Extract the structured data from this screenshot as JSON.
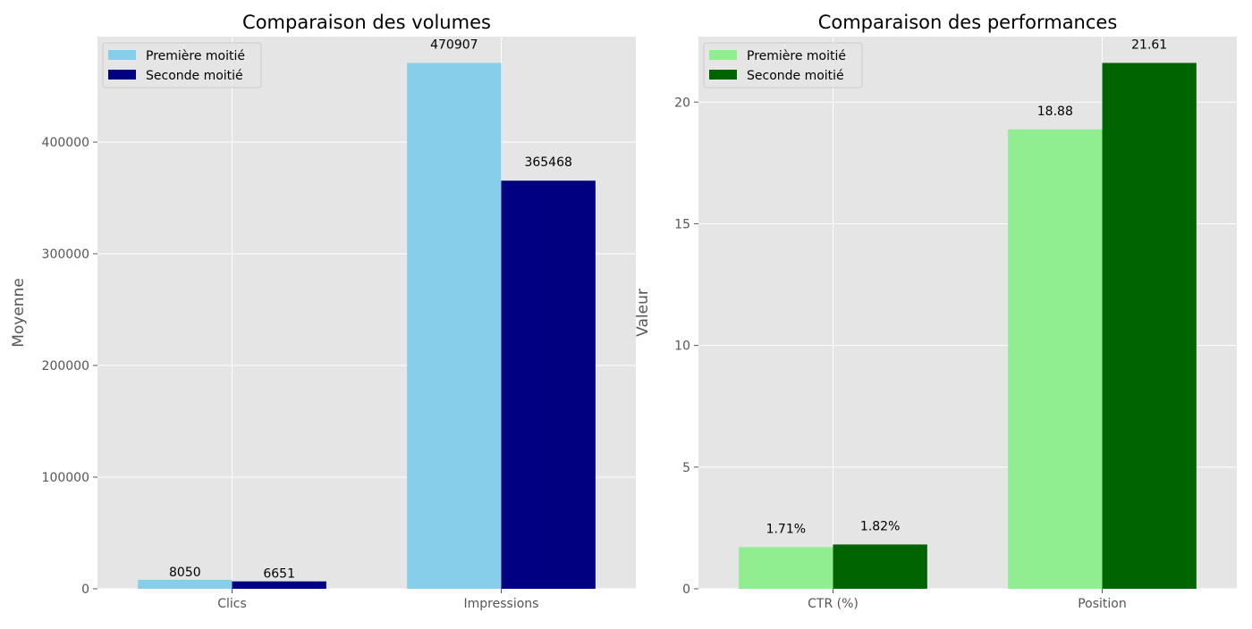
{
  "chart_data": [
    {
      "type": "bar",
      "title": "Comparaison des volumes",
      "xlabel": "",
      "ylabel": "Moyenne",
      "categories": [
        "Clics",
        "Impressions"
      ],
      "series": [
        {
          "name": "Première moitié",
          "values": [
            8050,
            470907
          ],
          "labels": [
            "8050",
            "470907"
          ],
          "color": "#87CEEB"
        },
        {
          "name": "Seconde moitié",
          "values": [
            6651,
            365468
          ],
          "labels": [
            "6651",
            "365468"
          ],
          "color": "#000080"
        }
      ],
      "ylim": [
        0,
        494452
      ],
      "yticks": [
        0,
        100000,
        200000,
        300000,
        400000
      ],
      "ytick_labels": [
        "0",
        "100000",
        "200000",
        "300000",
        "400000"
      ],
      "grid": true,
      "legend": "top-left"
    },
    {
      "type": "bar",
      "title": "Comparaison des performances",
      "xlabel": "",
      "ylabel": "Valeur",
      "categories": [
        "CTR (%)",
        "Position"
      ],
      "series": [
        {
          "name": "Première moitié",
          "values": [
            1.71,
            18.88
          ],
          "labels": [
            "1.71%",
            "18.88"
          ],
          "color": "#90EE90"
        },
        {
          "name": "Seconde moitié",
          "values": [
            1.82,
            21.61
          ],
          "labels": [
            "1.82%",
            "21.61"
          ],
          "color": "#006400"
        }
      ],
      "ylim": [
        0,
        22.69
      ],
      "yticks": [
        0,
        5,
        10,
        15,
        20
      ],
      "ytick_labels": [
        "0",
        "5",
        "10",
        "15",
        "20"
      ],
      "grid": true,
      "legend": "top-left"
    }
  ]
}
